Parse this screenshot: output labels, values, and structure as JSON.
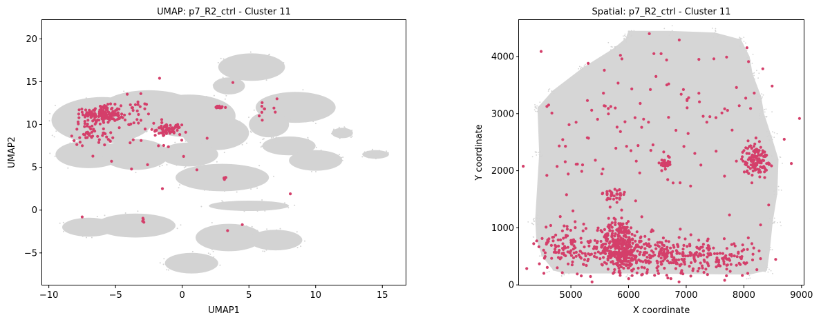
{
  "colors": {
    "background_cells": "#d3d3d3",
    "highlight_cells": "#d43f6a",
    "axis": "#000000"
  },
  "chart_data": [
    {
      "type": "scatter",
      "title": "UMAP: p7_R2_ctrl - Cluster 11",
      "xlabel": "UMAP1",
      "ylabel": "UMAP2",
      "xlim": [
        -10.5,
        16.8
      ],
      "ylim": [
        -8.8,
        22.2
      ],
      "xticks": [
        -10,
        -5,
        0,
        5,
        10,
        15
      ],
      "yticks": [
        -5,
        0,
        5,
        10,
        15,
        20
      ],
      "series": [
        {
          "role": "background",
          "color": "#d3d3d3",
          "regions": [
            {
              "cx": -6.0,
              "cy": 10.5,
              "rx": 3.8,
              "ry": 2.7
            },
            {
              "cx": -2.5,
              "cy": 12.0,
              "rx": 3.5,
              "ry": 2.0
            },
            {
              "cx": 0.5,
              "cy": 11.0,
              "rx": 3.5,
              "ry": 2.5
            },
            {
              "cx": 2.5,
              "cy": 9.0,
              "rx": 2.5,
              "ry": 2.0
            },
            {
              "cx": -7.0,
              "cy": 6.5,
              "rx": 2.5,
              "ry": 1.6
            },
            {
              "cx": -3.5,
              "cy": 6.5,
              "rx": 2.5,
              "ry": 1.8
            },
            {
              "cx": 0.5,
              "cy": 6.5,
              "rx": 2.2,
              "ry": 1.4
            },
            {
              "cx": 3.0,
              "cy": 3.8,
              "rx": 3.5,
              "ry": 1.6
            },
            {
              "cx": 5.2,
              "cy": 16.7,
              "rx": 2.5,
              "ry": 1.6
            },
            {
              "cx": 3.5,
              "cy": 14.5,
              "rx": 1.2,
              "ry": 1.0
            },
            {
              "cx": 8.5,
              "cy": 12.0,
              "rx": 3.0,
              "ry": 1.8
            },
            {
              "cx": 6.5,
              "cy": 10.0,
              "rx": 1.5,
              "ry": 1.5
            },
            {
              "cx": 8.0,
              "cy": 7.5,
              "rx": 2.0,
              "ry": 1.1
            },
            {
              "cx": 10.0,
              "cy": 5.8,
              "rx": 2.0,
              "ry": 1.2
            },
            {
              "cx": 14.5,
              "cy": 6.5,
              "rx": 1.0,
              "ry": 0.5
            },
            {
              "cx": -7.0,
              "cy": -2.0,
              "rx": 2.0,
              "ry": 1.1
            },
            {
              "cx": -3.5,
              "cy": -1.8,
              "rx": 3.0,
              "ry": 1.4
            },
            {
              "cx": 3.5,
              "cy": -3.2,
              "rx": 2.5,
              "ry": 1.6
            },
            {
              "cx": 7.0,
              "cy": -3.5,
              "rx": 2.0,
              "ry": 1.2
            },
            {
              "cx": 0.7,
              "cy": -6.2,
              "rx": 2.0,
              "ry": 1.2
            },
            {
              "cx": 5.0,
              "cy": 0.5,
              "rx": 3.0,
              "ry": 0.6
            },
            {
              "cx": 12.0,
              "cy": 9.0,
              "rx": 0.8,
              "ry": 0.6
            }
          ]
        },
        {
          "role": "cluster",
          "name": "Cluster 11",
          "color": "#d43f6a",
          "regions": [
            {
              "cx": -6.0,
              "cy": 11.2,
              "rx": 1.4,
              "ry": 1.0,
              "n": 160
            },
            {
              "cx": -6.6,
              "cy": 9.0,
              "rx": 1.6,
              "ry": 1.5,
              "n": 50
            },
            {
              "cx": -4.0,
              "cy": 11.0,
              "rx": 2.0,
              "ry": 2.0,
              "n": 35
            },
            {
              "cx": -1.0,
              "cy": 9.4,
              "rx": 0.9,
              "ry": 0.55,
              "n": 70
            },
            {
              "cx": 2.8,
              "cy": 12.0,
              "rx": 0.5,
              "ry": 0.15,
              "n": 18
            },
            {
              "cx": 3.2,
              "cy": 3.7,
              "rx": 0.25,
              "ry": 0.15,
              "n": 6
            },
            {
              "cx": 6.5,
              "cy": 11.5,
              "rx": 1.0,
              "ry": 1.5,
              "n": 8
            },
            {
              "cx": -1.5,
              "cy": 8.0,
              "rx": 3.5,
              "ry": 4.0,
              "n": 14
            },
            {
              "cx": -3.0,
              "cy": -1.2,
              "rx": 0.6,
              "ry": 0.4,
              "n": 4
            }
          ],
          "points": [
            {
              "x": -1.7,
              "y": 15.4
            },
            {
              "x": 3.8,
              "y": 14.9
            },
            {
              "x": 8.1,
              "y": 1.9
            },
            {
              "x": 1.1,
              "y": 4.7
            },
            {
              "x": -7.5,
              "y": -0.8
            },
            {
              "x": 3.4,
              "y": -2.4
            },
            {
              "x": 4.5,
              "y": -1.7
            },
            {
              "x": 6.0,
              "y": 10.5
            },
            {
              "x": 7.1,
              "y": 13.0
            },
            {
              "x": -3.8,
              "y": 4.8
            },
            {
              "x": -2.6,
              "y": 5.3
            },
            {
              "x": -5.3,
              "y": 5.7
            },
            {
              "x": -6.7,
              "y": 6.3
            },
            {
              "x": -3.1,
              "y": 13.6
            }
          ]
        }
      ]
    },
    {
      "type": "scatter",
      "title": "Spatial: p7_R2_ctrl - Cluster 11",
      "xlabel": "X coordinate",
      "ylabel": "Y coordinate",
      "xlim": [
        4100,
        9050
      ],
      "ylim": [
        -10,
        4640
      ],
      "xticks": [
        5000,
        6000,
        7000,
        8000,
        9000
      ],
      "yticks": [
        0,
        1000,
        2000,
        3000,
        4000
      ],
      "series": [
        {
          "role": "background",
          "color": "#d3d3d3",
          "outline": [
            [
              4380,
              1150
            ],
            [
              4450,
              2300
            ],
            [
              4420,
              3100
            ],
            [
              4680,
              3400
            ],
            [
              5200,
              3800
            ],
            [
              5750,
              4150
            ],
            [
              5950,
              4320
            ],
            [
              6000,
              4450
            ],
            [
              6700,
              4450
            ],
            [
              7500,
              4420
            ],
            [
              7950,
              4300
            ],
            [
              8100,
              4000
            ],
            [
              8150,
              3700
            ],
            [
              8300,
              3300
            ],
            [
              8350,
              3000
            ],
            [
              8480,
              2600
            ],
            [
              8600,
              2200
            ],
            [
              8580,
              1600
            ],
            [
              8500,
              1100
            ],
            [
              8450,
              600
            ],
            [
              8400,
              250
            ],
            [
              8100,
              180
            ],
            [
              6000,
              200
            ],
            [
              4900,
              200
            ],
            [
              4700,
              250
            ],
            [
              4500,
              500
            ],
            [
              4400,
              800
            ]
          ]
        },
        {
          "role": "cluster",
          "name": "Cluster 11",
          "color": "#d43f6a",
          "regions": [
            {
              "cx": 5850,
              "cy": 700,
              "rx": 330,
              "ry": 450,
              "n": 320
            },
            {
              "cx": 6300,
              "cy": 550,
              "rx": 1100,
              "ry": 330,
              "n": 260
            },
            {
              "cx": 4900,
              "cy": 700,
              "rx": 450,
              "ry": 450,
              "n": 110
            },
            {
              "cx": 7400,
              "cy": 450,
              "rx": 900,
              "ry": 300,
              "n": 150
            },
            {
              "cx": 8200,
              "cy": 2200,
              "rx": 220,
              "ry": 260,
              "n": 130
            },
            {
              "cx": 6630,
              "cy": 2120,
              "rx": 110,
              "ry": 80,
              "n": 30
            },
            {
              "cx": 5750,
              "cy": 1550,
              "rx": 200,
              "ry": 180,
              "n": 35
            },
            {
              "cx": 6500,
              "cy": 2700,
              "rx": 2000,
              "ry": 1500,
              "n": 110
            }
          ],
          "points": [
            {
              "x": 6880,
              "y": 4290
            },
            {
              "x": 6360,
              "y": 4400
            },
            {
              "x": 6440,
              "y": 4050
            },
            {
              "x": 7220,
              "y": 3950
            },
            {
              "x": 7480,
              "y": 3960
            },
            {
              "x": 7700,
              "y": 3990
            },
            {
              "x": 6660,
              "y": 3940
            },
            {
              "x": 5580,
              "y": 3760
            },
            {
              "x": 5300,
              "y": 3880
            },
            {
              "x": 4670,
              "y": 3010
            },
            {
              "x": 8180,
              "y": 3360
            },
            {
              "x": 8080,
              "y": 3910
            },
            {
              "x": 8430,
              "y": 1400
            },
            {
              "x": 8290,
              "y": 1050
            },
            {
              "x": 8700,
              "y": 2550
            }
          ]
        }
      ]
    }
  ]
}
